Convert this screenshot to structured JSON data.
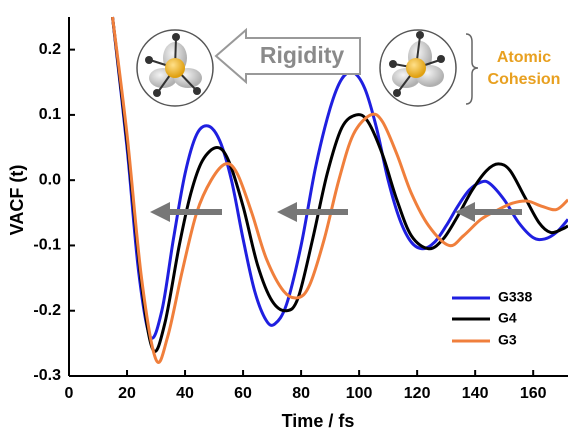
{
  "chart_data": {
    "type": "line",
    "xlabel": "Time / fs",
    "ylabel": "VACF (t)",
    "xlim": [
      0,
      172
    ],
    "ylim": [
      -0.3,
      0.25
    ],
    "xticks": [
      0,
      20,
      40,
      60,
      80,
      100,
      120,
      140,
      160
    ],
    "yticks": [
      -0.3,
      -0.2,
      -0.1,
      {
        "value": 0,
        "label": "0.0"
      },
      0.1,
      0.2
    ],
    "legend": "lower right",
    "annotations": [
      "Rigidity",
      "Atomic",
      "Cohesion"
    ],
    "series": [
      {
        "name": "G338",
        "color": "#1f1fe0",
        "x": [
          15,
          20,
          24,
          28,
          32,
          36,
          40,
          44,
          48,
          52,
          56,
          60,
          64,
          68,
          71,
          75,
          80,
          85,
          90,
          94,
          98,
          102,
          106,
          110,
          114,
          118,
          122,
          126,
          130,
          134,
          138,
          142,
          145,
          150,
          155,
          160,
          164,
          168,
          172
        ],
        "values": [
          0.25,
          0.05,
          -0.14,
          -0.24,
          -0.2,
          -0.09,
          0.01,
          0.07,
          0.083,
          0.06,
          0.0,
          -0.09,
          -0.17,
          -0.215,
          -0.22,
          -0.19,
          -0.1,
          0.02,
          0.11,
          0.155,
          0.165,
          0.14,
          0.08,
          0.0,
          -0.06,
          -0.095,
          -0.105,
          -0.095,
          -0.07,
          -0.04,
          -0.015,
          -0.003,
          -0.005,
          -0.03,
          -0.065,
          -0.088,
          -0.09,
          -0.08,
          -0.06
        ]
      },
      {
        "name": "G4",
        "color": "#000000",
        "x": [
          15,
          20,
          25,
          29,
          33,
          38,
          42,
          46,
          51,
          55,
          60,
          65,
          70,
          75,
          79,
          84,
          89,
          94,
          99,
          103,
          108,
          113,
          118,
          124,
          129,
          134,
          139,
          144,
          148,
          152,
          157,
          162,
          166,
          170,
          172
        ],
        "values": [
          0.25,
          0.06,
          -0.16,
          -0.26,
          -0.22,
          -0.1,
          -0.02,
          0.03,
          0.05,
          0.03,
          -0.04,
          -0.13,
          -0.185,
          -0.2,
          -0.18,
          -0.09,
          0.01,
          0.08,
          0.1,
          0.09,
          0.04,
          -0.03,
          -0.085,
          -0.105,
          -0.09,
          -0.055,
          -0.015,
          0.015,
          0.025,
          0.015,
          -0.025,
          -0.065,
          -0.08,
          -0.075,
          -0.07
        ]
      },
      {
        "name": "G3",
        "color": "#f07f3c",
        "x": [
          15,
          20,
          25,
          30,
          34,
          39,
          44,
          49,
          54,
          58,
          63,
          68,
          74,
          79,
          83,
          88,
          93,
          98,
          104,
          108,
          113,
          118,
          124,
          131,
          136,
          142,
          148,
          153,
          158,
          163,
          168,
          172
        ],
        "values": [
          0.25,
          0.07,
          -0.15,
          -0.275,
          -0.24,
          -0.14,
          -0.05,
          0.0,
          0.025,
          0.01,
          -0.05,
          -0.12,
          -0.17,
          -0.18,
          -0.16,
          -0.09,
          0.0,
          0.07,
          0.1,
          0.09,
          0.04,
          -0.02,
          -0.07,
          -0.1,
          -0.085,
          -0.06,
          -0.045,
          -0.035,
          -0.032,
          -0.04,
          -0.045,
          -0.03
        ]
      }
    ]
  }
}
